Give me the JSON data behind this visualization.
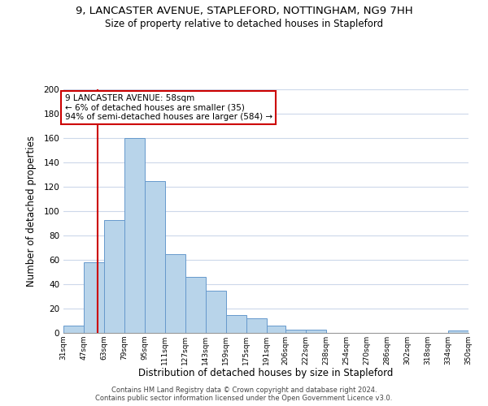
{
  "title_line1": "9, LANCASTER AVENUE, STAPLEFORD, NOTTINGHAM, NG9 7HH",
  "title_line2": "Size of property relative to detached houses in Stapleford",
  "xlabel": "Distribution of detached houses by size in Stapleford",
  "ylabel": "Number of detached properties",
  "bar_edges": [
    31,
    47,
    63,
    79,
    95,
    111,
    127,
    143,
    159,
    175,
    191,
    206,
    222,
    238,
    254,
    270,
    286,
    302,
    318,
    334,
    350
  ],
  "bar_heights": [
    6,
    58,
    93,
    160,
    125,
    65,
    46,
    35,
    15,
    12,
    6,
    3,
    3,
    0,
    0,
    0,
    0,
    0,
    0,
    2
  ],
  "bar_color": "#b8d4ea",
  "bar_edgecolor": "#6699cc",
  "property_line_x": 58,
  "property_line_color": "#cc0000",
  "annotation_title": "9 LANCASTER AVENUE: 58sqm",
  "annotation_line1": "← 6% of detached houses are smaller (35)",
  "annotation_line2": "94% of semi-detached houses are larger (584) →",
  "annotation_box_color": "#cc0000",
  "ylim": [
    0,
    200
  ],
  "yticks": [
    0,
    20,
    40,
    60,
    80,
    100,
    120,
    140,
    160,
    180,
    200
  ],
  "xtick_labels": [
    "31sqm",
    "47sqm",
    "63sqm",
    "79sqm",
    "95sqm",
    "111sqm",
    "127sqm",
    "143sqm",
    "159sqm",
    "175sqm",
    "191sqm",
    "206sqm",
    "222sqm",
    "238sqm",
    "254sqm",
    "270sqm",
    "286sqm",
    "302sqm",
    "318sqm",
    "334sqm",
    "350sqm"
  ],
  "footer_line1": "Contains HM Land Registry data © Crown copyright and database right 2024.",
  "footer_line2": "Contains public sector information licensed under the Open Government Licence v3.0.",
  "background_color": "#ffffff",
  "grid_color": "#ccd8ea"
}
